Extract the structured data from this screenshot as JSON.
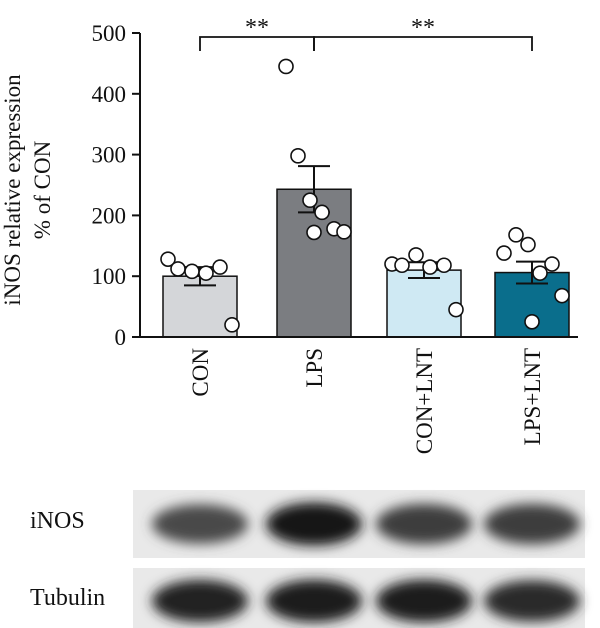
{
  "chart_data": {
    "type": "bar",
    "ylabel_line1": "iNOS relative expression",
    "ylabel_line2": "% of CON",
    "ylim": [
      0,
      500
    ],
    "yticks": [
      0,
      100,
      200,
      300,
      400,
      500
    ],
    "categories": [
      "CON",
      "LPS",
      "CON+LNT",
      "LPS+LNT"
    ],
    "values": [
      100,
      243,
      110,
      106
    ],
    "errors": [
      15,
      38,
      13,
      18
    ],
    "bar_colors": [
      "#d4d6d9",
      "#7b7d81",
      "#cfe9f3",
      "#0a6e8c"
    ],
    "points": [
      [
        128,
        112,
        108,
        105,
        115,
        20
      ],
      [
        445,
        298,
        225,
        205,
        178,
        173,
        172
      ],
      [
        120,
        118,
        135,
        115,
        118,
        45
      ],
      [
        138,
        168,
        152,
        105,
        120,
        68,
        25
      ]
    ],
    "significance": [
      {
        "from": 0,
        "to": 1,
        "label": "**"
      },
      {
        "from": 1,
        "to": 3,
        "label": "**"
      }
    ]
  },
  "blots": [
    {
      "label": "iNOS",
      "band_strengths": [
        0.72,
        0.95,
        0.78,
        0.78
      ]
    },
    {
      "label": "Tubulin",
      "band_strengths": [
        0.9,
        0.92,
        0.92,
        0.85
      ]
    }
  ]
}
